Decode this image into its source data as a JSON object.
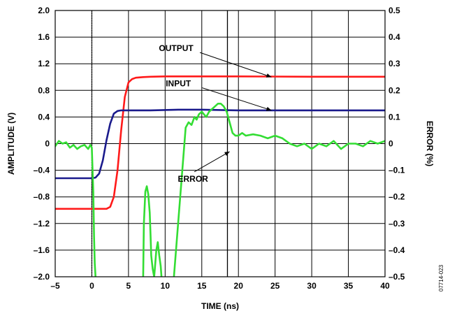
{
  "figure_id": "07714-023",
  "chart_data": {
    "type": "line",
    "xlabel": "TIME (ns)",
    "ylabel_left": "AMPLITUDE (V)",
    "ylabel_right": "ERROR (%)",
    "xlim": [
      -5,
      40
    ],
    "ylim_left": [
      -2.0,
      2.0
    ],
    "ylim_right": [
      -0.5,
      0.5
    ],
    "grid": true,
    "x_ticks": [
      "–5",
      "0",
      "5",
      "10",
      "15",
      "20",
      "25",
      "30",
      "35",
      "40"
    ],
    "x_tick_values": [
      -5,
      0,
      5,
      10,
      15,
      20,
      25,
      30,
      35,
      40
    ],
    "y_left_ticks": [
      "2.0",
      "1.6",
      "1.2",
      "0.8",
      "0.4",
      "0",
      "–0.4",
      "–0.8",
      "–1.2",
      "–1.6",
      "–2.0"
    ],
    "y_left_tick_values": [
      2.0,
      1.6,
      1.2,
      0.8,
      0.4,
      0,
      -0.4,
      -0.8,
      -1.2,
      -1.6,
      -2.0
    ],
    "y_right_ticks": [
      "0.5",
      "0.4",
      "0.3",
      "0.2",
      "0.1",
      "0",
      "–0.1",
      "–0.2",
      "–0.3",
      "–0.4",
      "–0.5"
    ],
    "y_right_tick_values": [
      0.5,
      0.4,
      0.3,
      0.2,
      0.1,
      0,
      -0.1,
      -0.2,
      -0.3,
      -0.4,
      -0.5
    ],
    "markers": [
      {
        "x": 0,
        "style": "dotted"
      },
      {
        "x": 18.5,
        "style": "solid"
      }
    ],
    "annotations": [
      {
        "text": "OUTPUT",
        "series": "output",
        "label_x": 11.5,
        "label_y": 1.39,
        "arrow_to_x": 24.5,
        "arrow_to_y": 1.0
      },
      {
        "text": "INPUT",
        "series": "input",
        "label_x": 11.8,
        "label_y": 0.86,
        "arrow_to_x": 24.5,
        "arrow_to_y": 0.5
      },
      {
        "text": "ERROR",
        "series": "error",
        "label_x": 13.8,
        "label_y": -0.57,
        "arrow_to_x": 18.8,
        "arrow_to_y": -0.12
      }
    ],
    "series": [
      {
        "id": "output",
        "axis": "left",
        "color": "#ff1a1a",
        "x": [
          -5,
          0,
          1,
          2,
          2.5,
          3,
          3.5,
          4,
          4.5,
          5,
          5.5,
          6,
          7,
          8,
          10,
          15,
          20,
          30,
          40
        ],
        "y": [
          -0.98,
          -0.98,
          -0.98,
          -0.98,
          -0.95,
          -0.8,
          -0.4,
          0.2,
          0.7,
          0.92,
          0.97,
          0.99,
          1.0,
          1.005,
          1.01,
          1.01,
          1.01,
          1.005,
          1.005
        ]
      },
      {
        "id": "input",
        "axis": "left",
        "color": "#1a1a8c",
        "x": [
          -5,
          0,
          0.5,
          1,
          1.5,
          2,
          2.5,
          3,
          3.5,
          4,
          5,
          8,
          12,
          15,
          20,
          30,
          40
        ],
        "y": [
          -0.52,
          -0.52,
          -0.51,
          -0.45,
          -0.25,
          0.05,
          0.3,
          0.45,
          0.49,
          0.5,
          0.5,
          0.5,
          0.51,
          0.51,
          0.5,
          0.5,
          0.5
        ],
        "_note": null
      },
      {
        "id": "error",
        "axis": "right",
        "color": "#33dd33",
        "segments": [
          {
            "x": [
              -5,
              -4.5,
              -4,
              -3.5,
              -3,
              -2.5,
              -2,
              -1.5,
              -1,
              -0.5,
              -0.2,
              0,
              0.2,
              0.3,
              0.4,
              0.5
            ],
            "y": [
              -0.01,
              0.01,
              0.0,
              0.005,
              -0.015,
              -0.005,
              -0.02,
              -0.01,
              -0.005,
              -0.02,
              -0.005,
              -0.015,
              -0.18,
              -0.35,
              -0.45,
              -0.5
            ]
          },
          {
            "x": [
              7.0,
              7.1,
              7.3,
              7.5,
              7.7,
              7.9,
              8.0,
              8.1,
              8.3,
              8.5,
              8.6,
              8.8,
              9.0,
              9.2,
              9.4,
              9.5
            ],
            "y": [
              -0.5,
              -0.3,
              -0.18,
              -0.16,
              -0.19,
              -0.26,
              -0.34,
              -0.42,
              -0.47,
              -0.5,
              -0.47,
              -0.4,
              -0.37,
              -0.42,
              -0.46,
              -0.5
            ]
          },
          {
            "x": [
              11.2,
              11.6,
              12.0,
              12.4,
              12.8,
              13.2,
              13.6,
              14.0,
              14.3,
              14.6,
              15.0,
              15.3,
              15.6,
              16.0,
              16.4,
              16.8,
              17.2,
              17.6,
              18.0,
              18.4,
              18.8,
              19.2,
              19.6,
              20.0,
              20.5,
              21,
              22,
              23,
              24,
              25,
              26,
              27,
              28,
              29,
              30,
              31,
              32,
              33,
              34,
              35,
              36,
              37,
              38,
              39,
              40
            ],
            "y": [
              -0.5,
              -0.36,
              -0.22,
              -0.08,
              0.06,
              0.08,
              0.07,
              0.1,
              0.09,
              0.11,
              0.12,
              0.11,
              0.1,
              0.12,
              0.13,
              0.14,
              0.15,
              0.15,
              0.14,
              0.12,
              0.08,
              0.04,
              0.03,
              0.03,
              0.04,
              0.03,
              0.035,
              0.03,
              0.02,
              0.03,
              0.02,
              0.0,
              -0.01,
              0.0,
              -0.02,
              0.0,
              -0.01,
              0.01,
              -0.02,
              0.0,
              0.0,
              -0.01,
              0.01,
              0.0,
              0.01
            ]
          }
        ]
      }
    ]
  }
}
